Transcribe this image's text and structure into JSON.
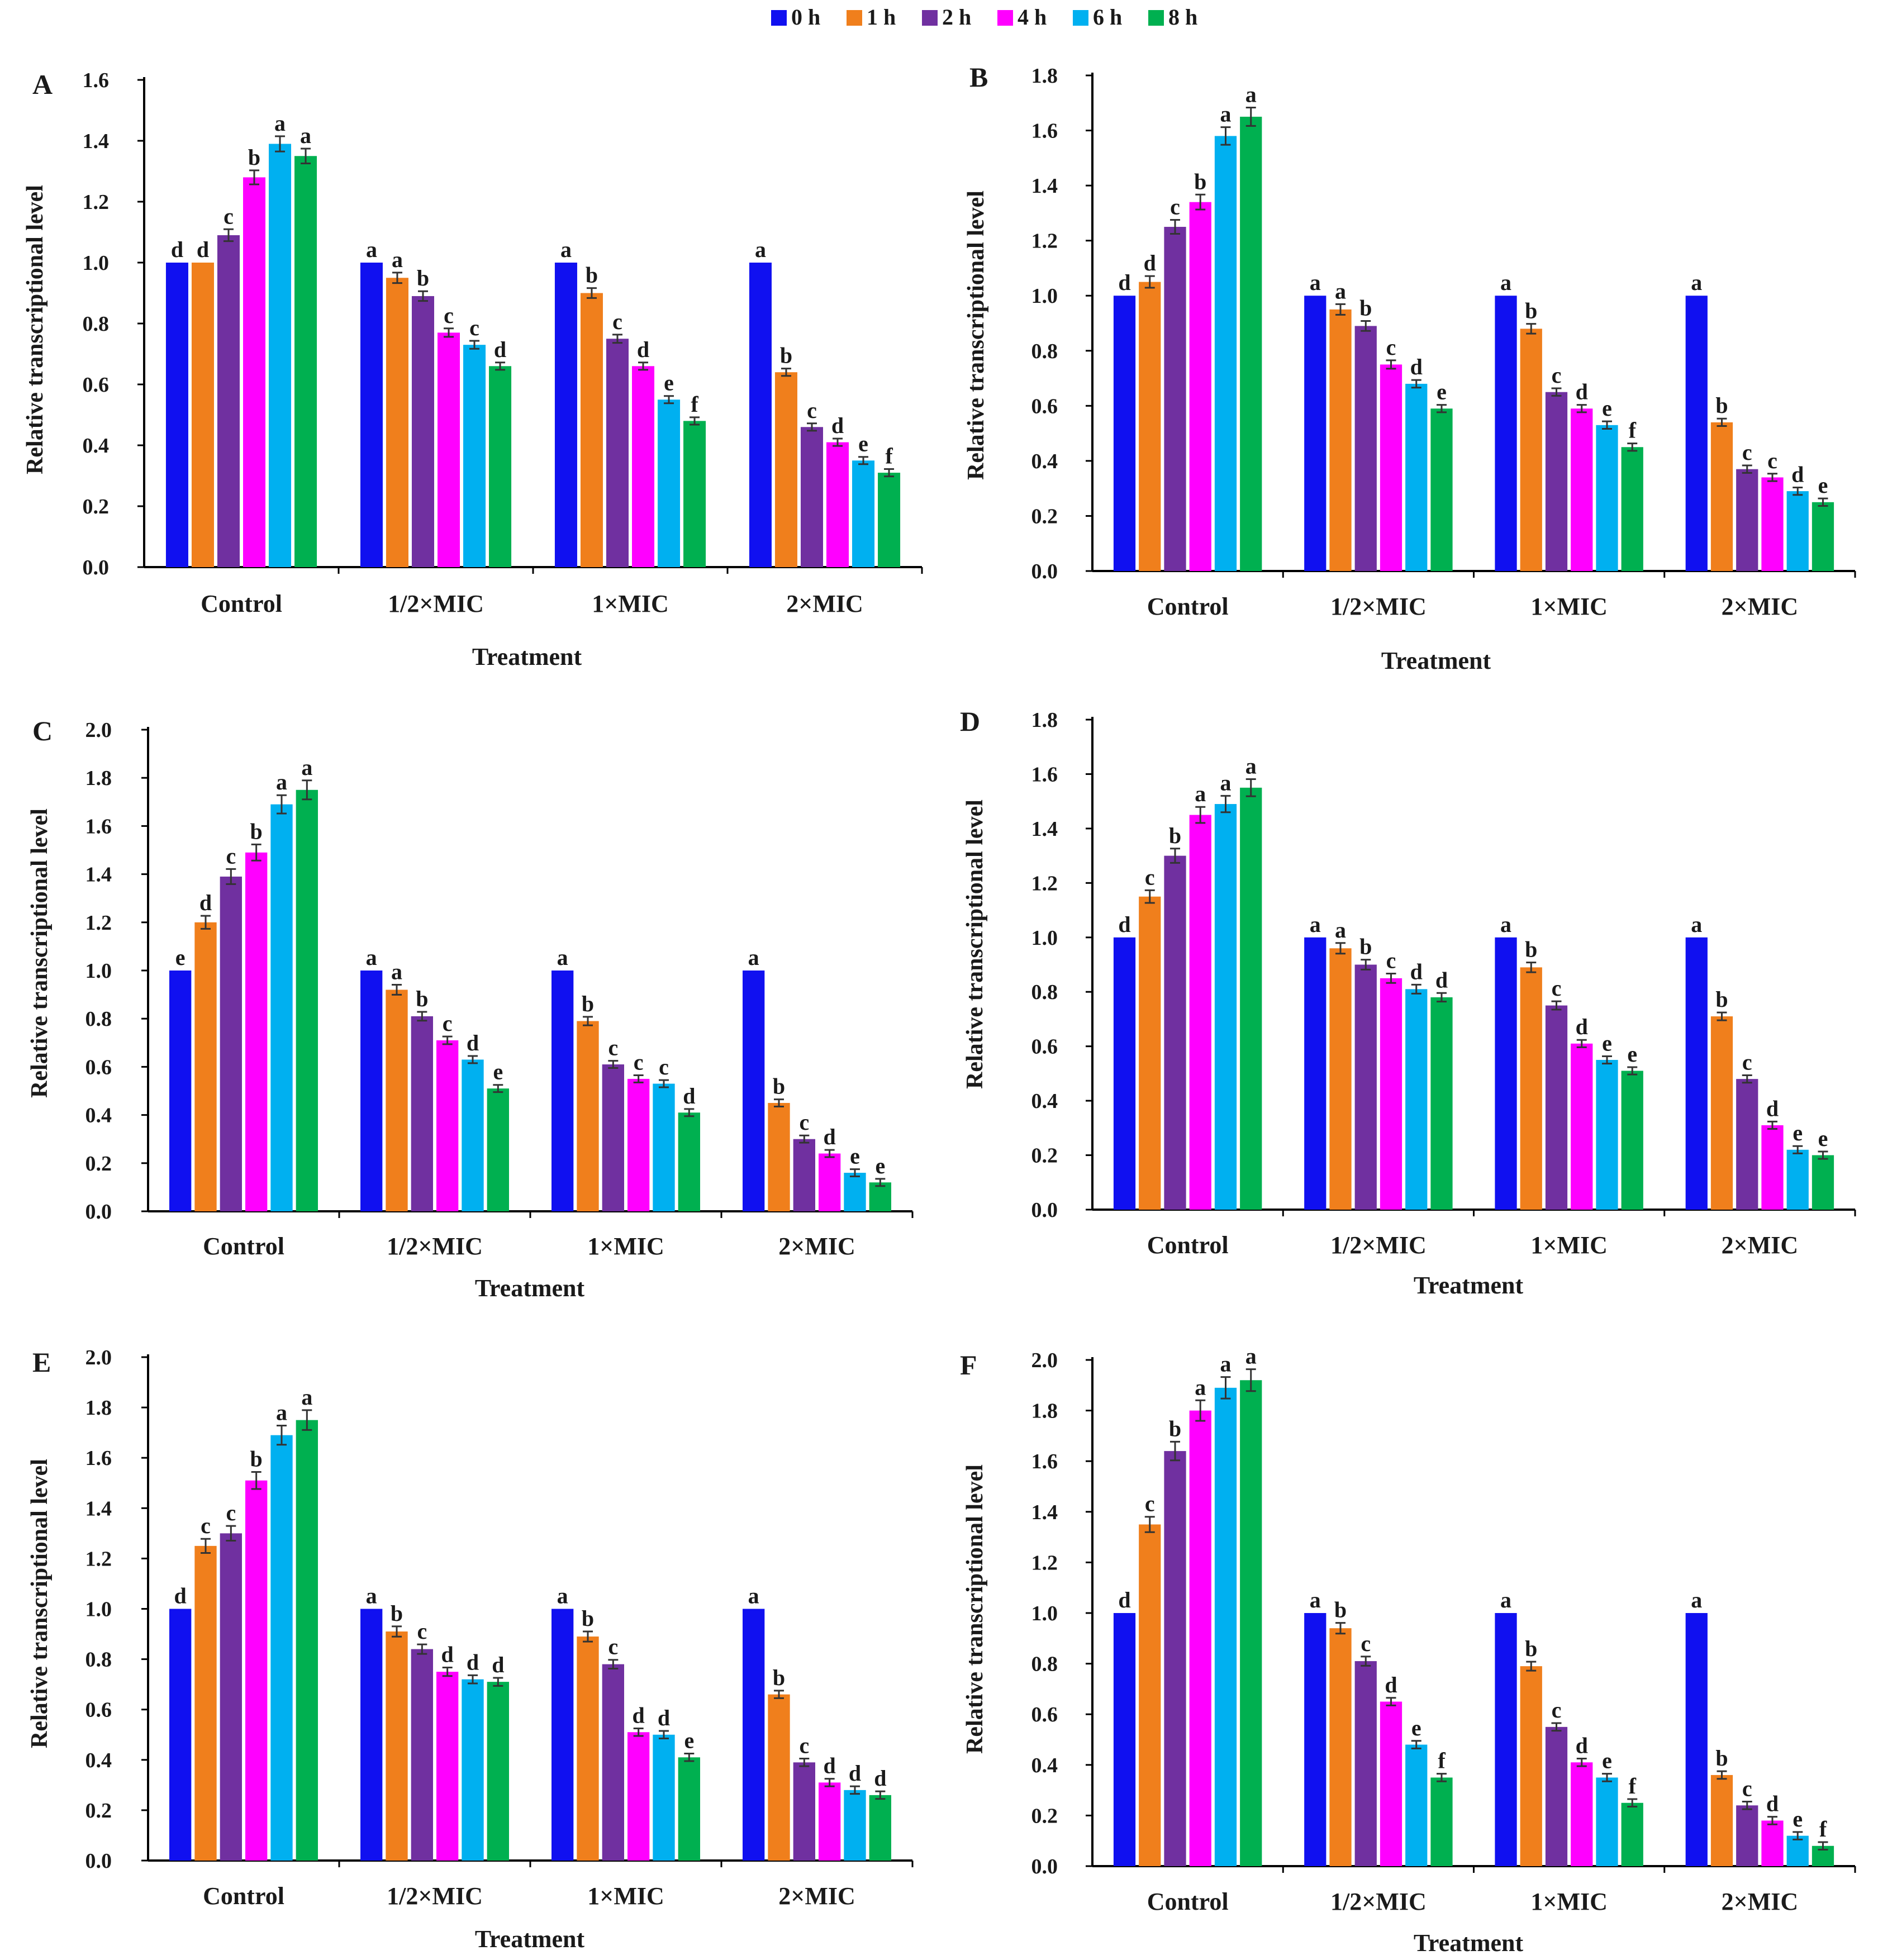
{
  "legend": {
    "items": [
      {
        "label": "0 h",
        "color": "#1010F0"
      },
      {
        "label": "1 h",
        "color": "#F07F1C"
      },
      {
        "label": "2 h",
        "color": "#7030A0"
      },
      {
        "label": "4 h",
        "color": "#FF00FF"
      },
      {
        "label": "6 h",
        "color": "#00B0F0"
      },
      {
        "label": "8 h",
        "color": "#00B050"
      }
    ]
  },
  "chart_data": [
    {
      "panel": "A",
      "type": "bar",
      "ylabel": "Relative transcriptional level",
      "xlabel": "Treatment",
      "ylim": [
        0,
        1.6
      ],
      "yticks": [
        "0.0",
        "0.2",
        "0.4",
        "0.6",
        "0.8",
        "1.0",
        "1.2",
        "1.4",
        "1.6"
      ],
      "categories": [
        "Control",
        "1/2×MIC",
        "1×MIC",
        "2×MIC"
      ],
      "series": [
        {
          "name": "0 h",
          "values": [
            1.0,
            1.0,
            1.0,
            1.0
          ],
          "letters": [
            "d",
            "a",
            "a",
            "a"
          ]
        },
        {
          "name": "1 h",
          "values": [
            1.0,
            0.95,
            0.9,
            0.64
          ],
          "letters": [
            "d",
            "a",
            "b",
            "b"
          ]
        },
        {
          "name": "2 h",
          "values": [
            1.09,
            0.89,
            0.75,
            0.46
          ],
          "letters": [
            "c",
            "b",
            "c",
            "c"
          ]
        },
        {
          "name": "4 h",
          "values": [
            1.28,
            0.77,
            0.66,
            0.41
          ],
          "letters": [
            "b",
            "c",
            "d",
            "d"
          ]
        },
        {
          "name": "6 h",
          "values": [
            1.39,
            0.73,
            0.55,
            0.35
          ],
          "letters": [
            "a",
            "c",
            "e",
            "e"
          ]
        },
        {
          "name": "8 h",
          "values": [
            1.35,
            0.66,
            0.48,
            0.31
          ],
          "letters": [
            "a",
            "d",
            "f",
            "f"
          ]
        }
      ]
    },
    {
      "panel": "B",
      "type": "bar",
      "ylabel": "Relative transcriptional level",
      "xlabel": "Treatment",
      "ylim": [
        0,
        1.8
      ],
      "yticks": [
        "0.0",
        "0.2",
        "0.4",
        "0.6",
        "0.8",
        "1.0",
        "1.2",
        "1.4",
        "1.6",
        "1.8"
      ],
      "categories": [
        "Control",
        "1/2×MIC",
        "1×MIC",
        "2×MIC"
      ],
      "series": [
        {
          "name": "0 h",
          "values": [
            1.0,
            1.0,
            1.0,
            1.0
          ],
          "letters": [
            "d",
            "a",
            "a",
            "a"
          ]
        },
        {
          "name": "1 h",
          "values": [
            1.05,
            0.95,
            0.88,
            0.54
          ],
          "letters": [
            "d",
            "a",
            "b",
            "b"
          ]
        },
        {
          "name": "2 h",
          "values": [
            1.25,
            0.89,
            0.65,
            0.37
          ],
          "letters": [
            "c",
            "b",
            "c",
            "c"
          ]
        },
        {
          "name": "4 h",
          "values": [
            1.34,
            0.75,
            0.59,
            0.34
          ],
          "letters": [
            "b",
            "c",
            "d",
            "c"
          ]
        },
        {
          "name": "6 h",
          "values": [
            1.58,
            0.68,
            0.53,
            0.29
          ],
          "letters": [
            "a",
            "d",
            "e",
            "d"
          ]
        },
        {
          "name": "8 h",
          "values": [
            1.65,
            0.59,
            0.45,
            0.25
          ],
          "letters": [
            "a",
            "e",
            "f",
            "e"
          ]
        }
      ]
    },
    {
      "panel": "C",
      "type": "bar",
      "ylabel": "Relative transcriptional level",
      "xlabel": "Treatment",
      "ylim": [
        0,
        2.0
      ],
      "yticks": [
        "0.0",
        "0.2",
        "0.4",
        "0.6",
        "0.8",
        "1.0",
        "1.2",
        "1.4",
        "1.6",
        "1.8",
        "2.0"
      ],
      "categories": [
        "Control",
        "1/2×MIC",
        "1×MIC",
        "2×MIC"
      ],
      "series": [
        {
          "name": "0 h",
          "values": [
            1.0,
            1.0,
            1.0,
            1.0
          ],
          "letters": [
            "e",
            "a",
            "a",
            "a"
          ]
        },
        {
          "name": "1 h",
          "values": [
            1.2,
            0.92,
            0.79,
            0.45
          ],
          "letters": [
            "d",
            "a",
            "b",
            "b"
          ]
        },
        {
          "name": "2 h",
          "values": [
            1.39,
            0.81,
            0.61,
            0.3
          ],
          "letters": [
            "c",
            "b",
            "c",
            "c"
          ]
        },
        {
          "name": "4 h",
          "values": [
            1.49,
            0.71,
            0.55,
            0.24
          ],
          "letters": [
            "b",
            "c",
            "c",
            "d"
          ]
        },
        {
          "name": "6 h",
          "values": [
            1.69,
            0.63,
            0.53,
            0.16
          ],
          "letters": [
            "a",
            "d",
            "c",
            "e"
          ]
        },
        {
          "name": "8 h",
          "values": [
            1.75,
            0.51,
            0.41,
            0.12
          ],
          "letters": [
            "a",
            "e",
            "d",
            "e"
          ]
        }
      ]
    },
    {
      "panel": "D",
      "type": "bar",
      "ylabel": "Relative transcriptional level",
      "xlabel": "Treatment",
      "ylim": [
        0,
        1.8
      ],
      "yticks": [
        "0.0",
        "0.2",
        "0.4",
        "0.6",
        "0.8",
        "1.0",
        "1.2",
        "1.4",
        "1.6",
        "1.8"
      ],
      "categories": [
        "Control",
        "1/2×MIC",
        "1×MIC",
        "2×MIC"
      ],
      "series": [
        {
          "name": "0 h",
          "values": [
            1.0,
            1.0,
            1.0,
            1.0
          ],
          "letters": [
            "d",
            "a",
            "a",
            "a"
          ]
        },
        {
          "name": "1 h",
          "values": [
            1.15,
            0.96,
            0.89,
            0.71
          ],
          "letters": [
            "c",
            "a",
            "b",
            "b"
          ]
        },
        {
          "name": "2 h",
          "values": [
            1.3,
            0.9,
            0.75,
            0.48
          ],
          "letters": [
            "b",
            "b",
            "c",
            "c"
          ]
        },
        {
          "name": "4 h",
          "values": [
            1.45,
            0.85,
            0.61,
            0.31
          ],
          "letters": [
            "a",
            "c",
            "d",
            "d"
          ]
        },
        {
          "name": "6 h",
          "values": [
            1.49,
            0.81,
            0.55,
            0.22
          ],
          "letters": [
            "a",
            "d",
            "e",
            "e"
          ]
        },
        {
          "name": "8 h",
          "values": [
            1.55,
            0.78,
            0.51,
            0.2
          ],
          "letters": [
            "a",
            "d",
            "e",
            "e"
          ]
        }
      ]
    },
    {
      "panel": "E",
      "type": "bar",
      "ylabel": "Relative transcriptional level",
      "xlabel": "Treatment",
      "ylim": [
        0,
        2.0
      ],
      "yticks": [
        "0.0",
        "0.2",
        "0.4",
        "0.6",
        "0.8",
        "1.0",
        "1.2",
        "1.4",
        "1.6",
        "1.8",
        "2.0"
      ],
      "categories": [
        "Control",
        "1/2×MIC",
        "1×MIC",
        "2×MIC"
      ],
      "series": [
        {
          "name": "0 h",
          "values": [
            1.0,
            1.0,
            1.0,
            1.0
          ],
          "letters": [
            "d",
            "a",
            "a",
            "a"
          ]
        },
        {
          "name": "1 h",
          "values": [
            1.25,
            0.91,
            0.89,
            0.66
          ],
          "letters": [
            "c",
            "b",
            "b",
            "b"
          ]
        },
        {
          "name": "2 h",
          "values": [
            1.3,
            0.84,
            0.78,
            0.39
          ],
          "letters": [
            "c",
            "c",
            "c",
            "c"
          ]
        },
        {
          "name": "4 h",
          "values": [
            1.51,
            0.75,
            0.51,
            0.31
          ],
          "letters": [
            "b",
            "d",
            "d",
            "d"
          ]
        },
        {
          "name": "6 h",
          "values": [
            1.69,
            0.72,
            0.5,
            0.28
          ],
          "letters": [
            "a",
            "d",
            "d",
            "d"
          ]
        },
        {
          "name": "8 h",
          "values": [
            1.75,
            0.71,
            0.41,
            0.26
          ],
          "letters": [
            "a",
            "d",
            "e",
            "d"
          ]
        }
      ]
    },
    {
      "panel": "F",
      "type": "bar",
      "ylabel": "Relative transcriptional level",
      "xlabel": "Treatment",
      "ylim": [
        0,
        2.0
      ],
      "yticks": [
        "0.0",
        "0.2",
        "0.4",
        "0.6",
        "0.8",
        "1.0",
        "1.2",
        "1.4",
        "1.6",
        "1.8",
        "2.0"
      ],
      "categories": [
        "Control",
        "1/2×MIC",
        "1×MIC",
        "2×MIC"
      ],
      "series": [
        {
          "name": "0 h",
          "values": [
            1.0,
            1.0,
            1.0,
            1.0
          ],
          "letters": [
            "d",
            "a",
            "a",
            "a"
          ]
        },
        {
          "name": "1 h",
          "values": [
            1.35,
            0.94,
            0.79,
            0.36
          ],
          "letters": [
            "c",
            "b",
            "b",
            "b"
          ]
        },
        {
          "name": "2 h",
          "values": [
            1.64,
            0.81,
            0.55,
            0.24
          ],
          "letters": [
            "b",
            "c",
            "c",
            "c"
          ]
        },
        {
          "name": "4 h",
          "values": [
            1.8,
            0.65,
            0.41,
            0.18
          ],
          "letters": [
            "a",
            "d",
            "d",
            "d"
          ]
        },
        {
          "name": "6 h",
          "values": [
            1.89,
            0.48,
            0.35,
            0.12
          ],
          "letters": [
            "a",
            "e",
            "e",
            "e"
          ]
        },
        {
          "name": "8 h",
          "values": [
            1.92,
            0.35,
            0.25,
            0.08
          ],
          "letters": [
            "a",
            "f",
            "f",
            "f"
          ]
        }
      ]
    }
  ]
}
